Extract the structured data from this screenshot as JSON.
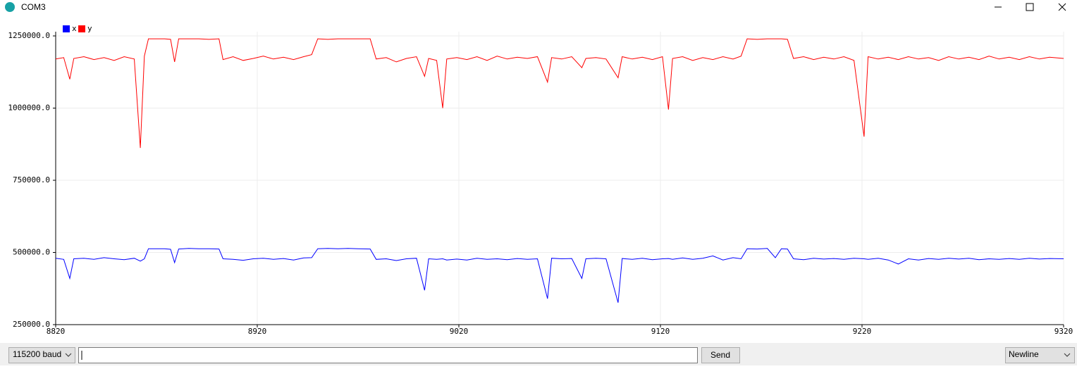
{
  "ui": {
    "window_title": "COM3",
    "baud": "115200 baud",
    "send": "Send",
    "line_ending": "Newline"
  },
  "chart_data": {
    "type": "line",
    "x": [
      8820,
      8824,
      8827,
      8829,
      8834,
      8839,
      8844,
      8849,
      8854,
      8859,
      8862,
      8864,
      8866,
      8870,
      8874,
      8877,
      8879,
      8881,
      8886,
      8891,
      8896,
      8901,
      8903,
      8908,
      8913,
      8918,
      8923,
      8928,
      8933,
      8938,
      8943,
      8947,
      8950,
      8955,
      8960,
      8965,
      8970,
      8976,
      8979,
      8984,
      8989,
      8994,
      8999,
      9003,
      9005,
      9009,
      9012,
      9014,
      9019,
      9024,
      9029,
      9034,
      9039,
      9044,
      9049,
      9054,
      9059,
      9064,
      9066,
      9071,
      9076,
      9081,
      9083,
      9088,
      9093,
      9099,
      9101,
      9106,
      9111,
      9116,
      9121,
      9124,
      9126,
      9131,
      9136,
      9141,
      9146,
      9151,
      9156,
      9160,
      9163,
      9168,
      9173,
      9177,
      9180,
      9183,
      9186,
      9191,
      9196,
      9201,
      9206,
      9211,
      9216,
      9221,
      9223,
      9228,
      9233,
      9238,
      9243,
      9248,
      9253,
      9258,
      9263,
      9268,
      9273,
      9278,
      9283,
      9288,
      9293,
      9298,
      9303,
      9308,
      9313,
      9320
    ],
    "series": [
      {
        "name": "x",
        "color": "#0000ff",
        "values": [
          480000,
          476000,
          410000,
          478000,
          480000,
          476000,
          482000,
          478000,
          475000,
          480000,
          470000,
          478000,
          513000,
          513000,
          513000,
          511000,
          465000,
          512000,
          514000,
          513000,
          513000,
          512000,
          478000,
          476000,
          473000,
          478000,
          480000,
          476000,
          479000,
          474000,
          481000,
          482000,
          513000,
          514000,
          513000,
          514000,
          513000,
          512000,
          476000,
          478000,
          472000,
          478000,
          480000,
          369000,
          478000,
          476000,
          478000,
          474000,
          477000,
          474000,
          480000,
          476000,
          478000,
          475000,
          479000,
          476000,
          478000,
          340000,
          480000,
          478000,
          479000,
          410000,
          478000,
          480000,
          478000,
          326000,
          479000,
          476000,
          480000,
          475000,
          478000,
          479000,
          476000,
          481000,
          476000,
          480000,
          488000,
          474000,
          482000,
          478000,
          513000,
          512000,
          514000,
          482000,
          513000,
          512000,
          478000,
          475000,
          480000,
          477000,
          479000,
          476000,
          480000,
          478000,
          476000,
          480000,
          474000,
          460000,
          478000,
          474000,
          479000,
          476000,
          480000,
          477000,
          480000,
          475000,
          478000,
          476000,
          479000,
          476000,
          480000,
          477000,
          479000,
          478000
        ]
      },
      {
        "name": "y",
        "color": "#ff0000",
        "values": [
          1170000,
          1175000,
          1100000,
          1172000,
          1178000,
          1168000,
          1175000,
          1165000,
          1178000,
          1170000,
          862000,
          1180000,
          1240000,
          1240000,
          1240000,
          1238000,
          1160000,
          1240000,
          1240000,
          1240000,
          1238000,
          1240000,
          1168000,
          1178000,
          1165000,
          1172000,
          1180000,
          1170000,
          1176000,
          1168000,
          1178000,
          1185000,
          1240000,
          1238000,
          1240000,
          1240000,
          1240000,
          1240000,
          1170000,
          1175000,
          1160000,
          1172000,
          1178000,
          1110000,
          1172000,
          1165000,
          1000000,
          1170000,
          1175000,
          1168000,
          1178000,
          1165000,
          1180000,
          1170000,
          1176000,
          1172000,
          1178000,
          1090000,
          1175000,
          1170000,
          1178000,
          1140000,
          1172000,
          1175000,
          1170000,
          1105000,
          1178000,
          1170000,
          1176000,
          1168000,
          1178000,
          995000,
          1172000,
          1178000,
          1165000,
          1175000,
          1168000,
          1178000,
          1170000,
          1180000,
          1240000,
          1238000,
          1240000,
          1240000,
          1240000,
          1238000,
          1172000,
          1178000,
          1168000,
          1176000,
          1170000,
          1178000,
          1165000,
          901000,
          1178000,
          1170000,
          1176000,
          1168000,
          1178000,
          1170000,
          1175000,
          1165000,
          1178000,
          1170000,
          1176000,
          1168000,
          1180000,
          1170000,
          1176000,
          1168000,
          1178000,
          1170000,
          1176000,
          1172000
        ]
      }
    ],
    "xlim": [
      8820,
      9320
    ],
    "xticks": [
      8820,
      8920,
      9020,
      9120,
      9220,
      9320
    ],
    "ylim": [
      250000,
      1250000
    ],
    "yticks": [
      {
        "value": 250000,
        "label": "250000.0"
      },
      {
        "value": 500000,
        "label": "500000.0"
      },
      {
        "value": 750000,
        "label": "750000.0"
      },
      {
        "value": 1000000,
        "label": "1000000.0"
      },
      {
        "value": 1250000,
        "label": "1250000.0"
      }
    ],
    "grid": true
  }
}
